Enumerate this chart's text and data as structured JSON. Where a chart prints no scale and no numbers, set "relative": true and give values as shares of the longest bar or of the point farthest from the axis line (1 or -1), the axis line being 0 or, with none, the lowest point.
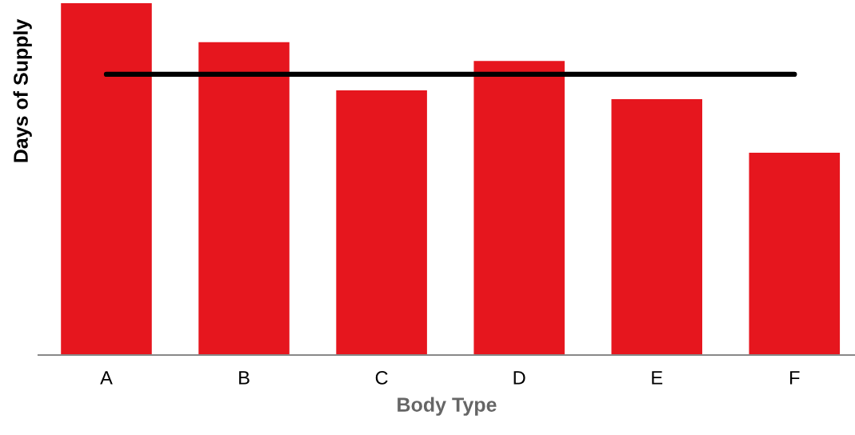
{
  "chart_data": {
    "type": "bar",
    "relative": true,
    "xlabel": "Body Type",
    "ylabel": "Days of Supply",
    "categories": [
      "A",
      "B",
      "C",
      "D",
      "E",
      "F"
    ],
    "series": [
      {
        "color": "#e6161e",
        "values": [
          1.0,
          0.889,
          0.752,
          0.836,
          0.727,
          0.575
        ]
      },
      {
        "type": "line",
        "color": "#000000",
        "values": [
          0.798,
          0.798,
          0.798,
          0.798,
          0.798,
          0.798
        ]
      }
    ],
    "grid": false,
    "legend": false
  }
}
